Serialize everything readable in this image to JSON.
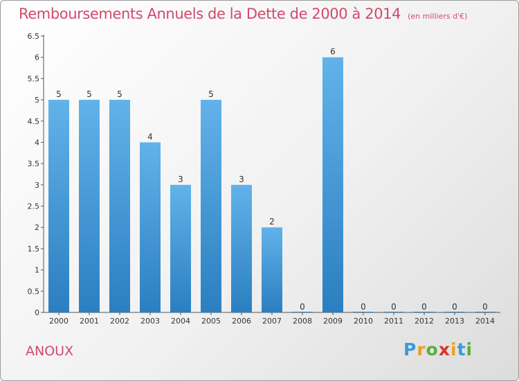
{
  "header": {
    "title": "Remboursements Annuels de la Dette de 2000 à 2014",
    "unit": "(en milliers d'€)"
  },
  "footer": {
    "commune": "ANOUX",
    "logo": {
      "letters": [
        "P",
        "r",
        "o",
        "x",
        "i",
        "t",
        "i"
      ],
      "colors": [
        "#3a9ad9",
        "#e8a21e",
        "#5cae3a",
        "#d9342b",
        "#e8a21e",
        "#3a9ad9",
        "#5cae3a"
      ]
    }
  },
  "chart_data": {
    "type": "bar",
    "title": "Remboursements Annuels de la Dette de 2000 à 2014",
    "subtitle": "(en milliers d'€)",
    "categories": [
      "2000",
      "2001",
      "2002",
      "2003",
      "2004",
      "2005",
      "2006",
      "2007",
      "2008",
      "2009",
      "2010",
      "2011",
      "2012",
      "2013",
      "2014"
    ],
    "values": [
      5,
      5,
      5,
      4,
      3,
      5,
      3,
      2,
      0,
      6,
      0,
      0,
      0,
      0,
      0
    ],
    "value_labels": [
      "5",
      "5",
      "5",
      "4",
      "3",
      "5",
      "3",
      "2",
      "0",
      "6",
      "0",
      "0",
      "0",
      "0",
      "0"
    ],
    "yticks": [
      "0",
      "0.5",
      "1",
      "1.5",
      "2",
      "2.5",
      "3",
      "3.5",
      "4",
      "4.5",
      "5",
      "5.5",
      "6",
      "6.5"
    ],
    "ylim": [
      0,
      6.5
    ],
    "grid": false,
    "colors": {
      "bar_top": "#62b2ea",
      "bar_bottom": "#2b7fc0",
      "label": "#333333",
      "axis": "#555555"
    }
  }
}
